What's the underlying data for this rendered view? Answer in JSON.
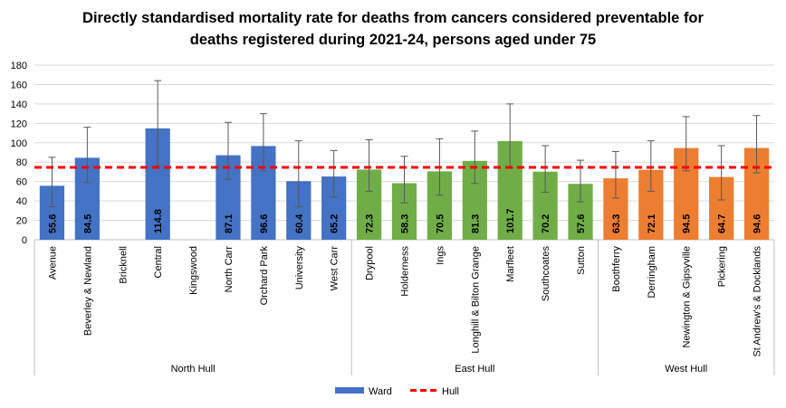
{
  "chart_data": {
    "type": "bar",
    "title": "Directly standardised  mortality rate for deaths from cancers considered preventable for deaths registered during 2021-24, persons aged under 75",
    "groups": [
      {
        "name": "North Hull",
        "color": "#4472c4",
        "categories": [
          "Avenue",
          "Beverley & Newland",
          "Bricknell",
          "Central",
          "Kingswood",
          "North Carr",
          "Orchard Park",
          "University",
          "West Carr"
        ],
        "values": [
          55.6,
          84.5,
          null,
          114.8,
          null,
          87.1,
          96.6,
          60.4,
          65.2
        ],
        "lower": [
          34,
          59,
          null,
          76,
          null,
          62,
          71,
          34,
          44
        ],
        "upper": [
          85,
          116,
          null,
          164,
          null,
          121,
          130,
          102,
          92
        ]
      },
      {
        "name": "East Hull",
        "color": "#70ad47",
        "categories": [
          "Drypool",
          "Holderness",
          "Ings",
          "Longhill & Bilton Grange",
          "Marfleet",
          "Southcoates",
          "Sutton"
        ],
        "values": [
          72.3,
          58.3,
          70.5,
          81.3,
          101.7,
          70.2,
          57.6
        ],
        "lower": [
          50,
          38,
          46,
          58,
          74,
          49,
          39
        ],
        "upper": [
          103,
          86,
          104,
          112,
          140,
          97,
          82
        ]
      },
      {
        "name": "West Hull",
        "color": "#ed7d31",
        "categories": [
          "Boothferry",
          "Derringham",
          "Newington & Gipsyville",
          "Pickering",
          "St Andrew's & Docklands"
        ],
        "values": [
          63.3,
          72.1,
          94.5,
          64.7,
          94.6
        ],
        "lower": [
          43,
          50,
          71,
          41,
          69
        ],
        "upper": [
          91,
          102,
          127,
          97,
          128
        ]
      }
    ],
    "legend_series": {
      "name": "Ward",
      "color": "#4472c4"
    },
    "reference": {
      "name": "Hull",
      "value": 74.6,
      "color": "#ff0000"
    },
    "ylim": [
      0,
      180
    ],
    "yticks": [
      0,
      20,
      40,
      60,
      80,
      100,
      120,
      140,
      160,
      180
    ],
    "grid": true
  }
}
